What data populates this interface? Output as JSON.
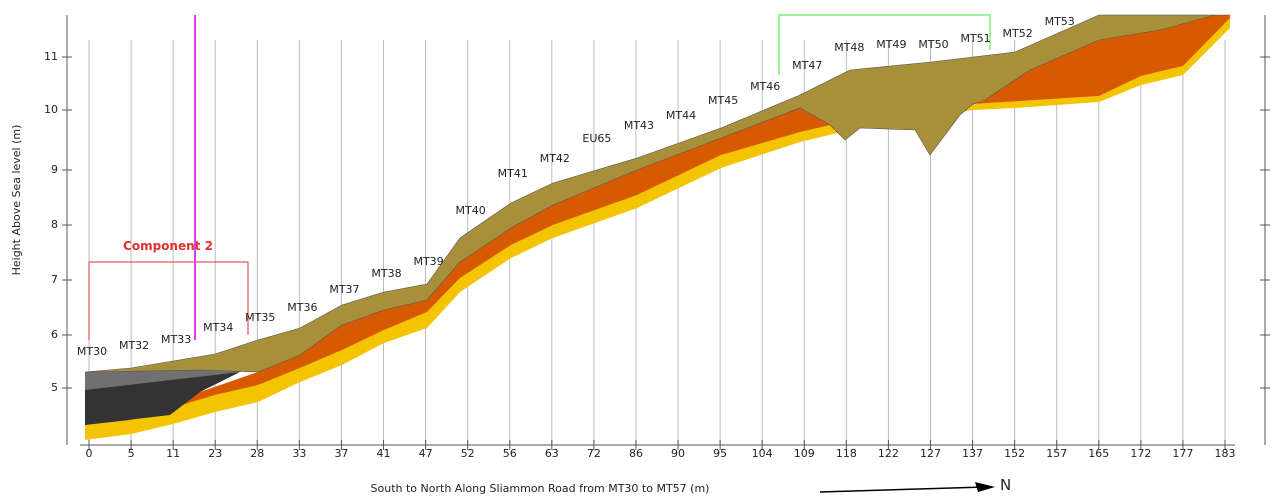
{
  "y_axis": {
    "label": "Height Above Sea level (m)",
    "ticks": [
      5,
      6,
      7,
      8,
      9,
      10,
      11
    ]
  },
  "x_axis": {
    "title": "South to North Along Sliammon Road from MT30 to MT57 (m)",
    "ticks": [
      0,
      5,
      11,
      23,
      28,
      33,
      37,
      41,
      47,
      52,
      56,
      63,
      72,
      86,
      90,
      95,
      104,
      109,
      118,
      122,
      127,
      137,
      152,
      157,
      165,
      172,
      177,
      183
    ]
  },
  "wells": [
    "MT30",
    "MT32",
    "MT33",
    "MT34",
    "MT35",
    "MT36",
    "MT37",
    "MT38",
    "MT39",
    "MT40",
    "MT41",
    "MT42",
    "EU65",
    "MT43",
    "MT44",
    "MT45",
    "MT46",
    "MT47",
    "MT48",
    "MT49",
    "MT50",
    "MT51",
    "MT52",
    "MT53"
  ],
  "component_label": "Component 2",
  "north_label": "N"
}
